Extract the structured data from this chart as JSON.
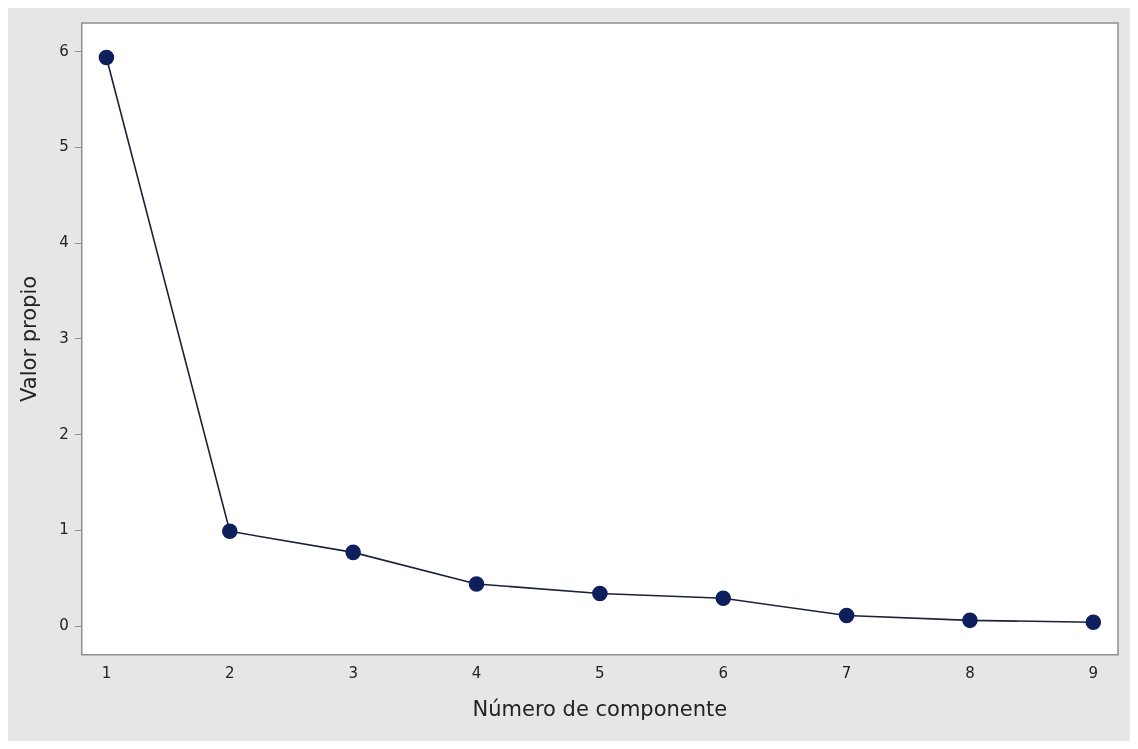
{
  "chart_data": {
    "type": "line",
    "xlabel": "Número de componente",
    "ylabel": "Valor propio",
    "x": [
      1,
      2,
      3,
      4,
      5,
      6,
      7,
      8,
      9
    ],
    "series": [
      {
        "color": "#0d1f5c",
        "values": [
          5.94,
          0.99,
          0.77,
          0.44,
          0.34,
          0.29,
          0.11,
          0.06,
          0.04
        ]
      }
    ],
    "xlim": [
      0.8,
      9.2
    ],
    "xticks": [
      1,
      2,
      3,
      4,
      5,
      6,
      7,
      8,
      9
    ],
    "ylim": [
      -0.3,
      6.3
    ],
    "yticks": [
      0,
      1,
      2,
      3,
      4,
      5,
      6
    ],
    "grid": false,
    "legend": false,
    "marker": "circle",
    "line_style": "solid"
  }
}
